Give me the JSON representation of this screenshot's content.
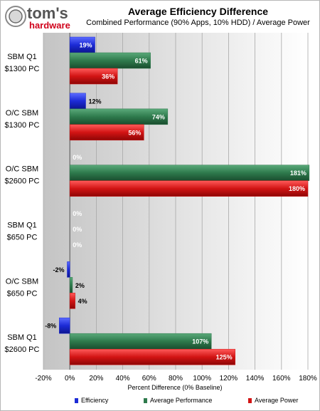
{
  "header": {
    "logo_text_main": "tom's",
    "logo_text_sub": "hardware",
    "title": "Average Efficiency Difference",
    "subtitle": "Combined Performance (90% Apps, 10% HDD) / Average Power"
  },
  "colors": {
    "efficiency": "#1c2bd6",
    "performance": "#2e7a4c",
    "power": "#d21414"
  },
  "chart_data": {
    "type": "bar",
    "orientation": "horizontal",
    "categories": [
      [
        "SBM Q1",
        "$1300 PC"
      ],
      [
        "O/C SBM",
        "$1300 PC"
      ],
      [
        "O/C SBM",
        "$2600 PC"
      ],
      [
        "SBM Q1",
        "$650 PC"
      ],
      [
        "O/C SBM",
        "$650 PC"
      ],
      [
        "SBM Q1",
        "$2600 PC"
      ]
    ],
    "series": [
      {
        "name": "Efficiency",
        "values": [
          19,
          12,
          0,
          0,
          -2,
          -8
        ]
      },
      {
        "name": "Average Performance",
        "values": [
          61,
          74,
          181,
          0,
          2,
          107
        ]
      },
      {
        "name": "Average Power",
        "values": [
          36,
          56,
          180,
          0,
          4,
          125
        ]
      }
    ],
    "xlabel": "Percent Difference (0% Baseline)",
    "xlim": [
      -20,
      180
    ],
    "xticks": [
      -20,
      0,
      20,
      40,
      60,
      80,
      100,
      120,
      140,
      160,
      180
    ],
    "tick_suffix": "%",
    "label_suffix": "%",
    "legend_position": "bottom"
  }
}
